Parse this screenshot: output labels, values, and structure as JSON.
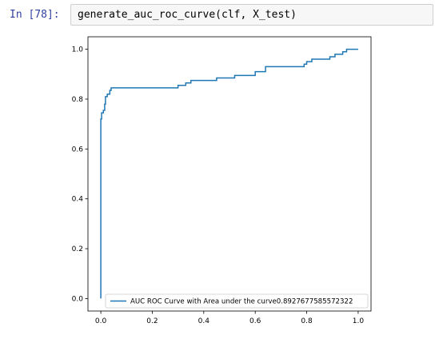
{
  "cell": {
    "prompt": "In [78]:",
    "code": "generate_auc_roc_curve(clf, X_test)"
  },
  "chart_data": {
    "type": "line",
    "title": "",
    "xlabel": "",
    "ylabel": "",
    "xlim": [
      0.0,
      1.0
    ],
    "ylim": [
      0.0,
      1.0
    ],
    "x_ticks": [
      "0.0",
      "0.2",
      "0.4",
      "0.6",
      "0.8",
      "1.0"
    ],
    "y_ticks": [
      "0.0",
      "0.2",
      "0.4",
      "0.6",
      "0.8",
      "1.0"
    ],
    "grid": false,
    "legend_position": "lower-right",
    "series": [
      {
        "name": "AUC ROC Curve with Area under the curve0.8927677585572322",
        "color": "#1f77b4",
        "x": [
          0.0,
          0.0,
          0.003,
          0.003,
          0.01,
          0.01,
          0.015,
          0.015,
          0.018,
          0.018,
          0.025,
          0.025,
          0.035,
          0.035,
          0.04,
          0.04,
          0.3,
          0.3,
          0.33,
          0.33,
          0.35,
          0.35,
          0.45,
          0.45,
          0.52,
          0.52,
          0.6,
          0.6,
          0.64,
          0.64,
          0.79,
          0.79,
          0.8,
          0.8,
          0.82,
          0.82,
          0.89,
          0.89,
          0.91,
          0.91,
          0.94,
          0.94,
          0.955,
          0.955,
          1.0
        ],
        "y": [
          0.0,
          0.72,
          0.72,
          0.745,
          0.745,
          0.755,
          0.755,
          0.78,
          0.78,
          0.81,
          0.81,
          0.82,
          0.82,
          0.835,
          0.835,
          0.845,
          0.845,
          0.855,
          0.855,
          0.865,
          0.865,
          0.875,
          0.875,
          0.885,
          0.885,
          0.895,
          0.895,
          0.91,
          0.91,
          0.93,
          0.93,
          0.94,
          0.94,
          0.95,
          0.95,
          0.96,
          0.96,
          0.97,
          0.97,
          0.98,
          0.98,
          0.99,
          0.99,
          1.0,
          1.0
        ]
      }
    ]
  }
}
